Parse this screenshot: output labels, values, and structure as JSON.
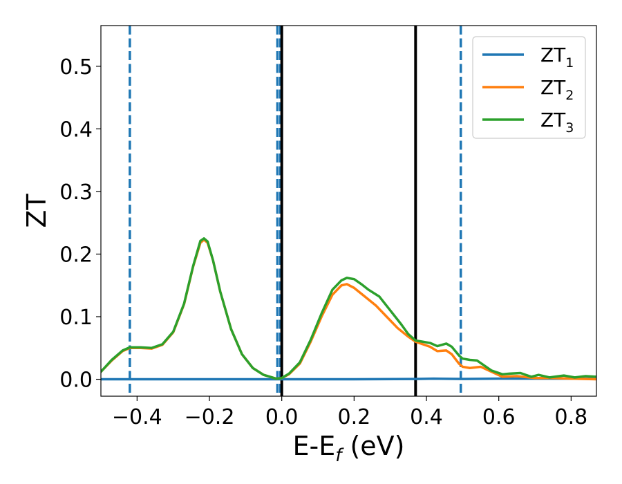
{
  "chart_data": {
    "type": "line",
    "xlabel": "E-E_f (eV)",
    "xlabel_parts": {
      "main": "E-E",
      "sub": "f",
      "unit": " (eV)"
    },
    "ylabel": "ZT",
    "xlim": [
      -0.5,
      0.87
    ],
    "ylim": [
      -0.027,
      0.565
    ],
    "xticks": [
      -0.4,
      -0.2,
      0.0,
      0.2,
      0.4,
      0.6,
      0.8
    ],
    "xtick_labels": [
      "−0.4",
      "−0.2",
      "0.0",
      "0.2",
      "0.4",
      "0.6",
      "0.8"
    ],
    "yticks": [
      0.0,
      0.1,
      0.2,
      0.3,
      0.4,
      0.5
    ],
    "ytick_labels": [
      "0.0",
      "0.1",
      "0.2",
      "0.3",
      "0.4",
      "0.5"
    ],
    "grid": false,
    "legend_position": "top-right",
    "vertical_lines": [
      {
        "x": -0.42,
        "style": "dashed",
        "color": "#1f77b4"
      },
      {
        "x": -0.012,
        "style": "dashed",
        "color": "#1f77b4"
      },
      {
        "x": -0.004,
        "style": "dashed",
        "color": "#1f77b4"
      },
      {
        "x": 0.0,
        "style": "solid",
        "color": "#000000"
      },
      {
        "x": 0.37,
        "style": "solid",
        "color": "#000000"
      },
      {
        "x": 0.495,
        "style": "dashed",
        "color": "#1f77b4"
      }
    ],
    "series": [
      {
        "name": "ZT_1",
        "label_main": "ZT",
        "label_sub": "1",
        "color": "#1f77b4",
        "points": [
          [
            -0.5,
            0.0
          ],
          [
            -0.2,
            0.0
          ],
          [
            0.0,
            0.0
          ],
          [
            0.2,
            0.0
          ],
          [
            0.37,
            0.0005
          ],
          [
            0.42,
            0.001
          ],
          [
            0.5,
            0.0005
          ],
          [
            0.6,
            0.001
          ],
          [
            0.7,
            0.001
          ],
          [
            0.87,
            0.001
          ]
        ]
      },
      {
        "name": "ZT_2",
        "label_main": "ZT",
        "label_sub": "2",
        "color": "#ff7f0e",
        "points": [
          [
            -0.5,
            0.012
          ],
          [
            -0.47,
            0.03
          ],
          [
            -0.44,
            0.045
          ],
          [
            -0.42,
            0.05
          ],
          [
            -0.39,
            0.05
          ],
          [
            -0.36,
            0.049
          ],
          [
            -0.33,
            0.055
          ],
          [
            -0.3,
            0.075
          ],
          [
            -0.27,
            0.12
          ],
          [
            -0.245,
            0.18
          ],
          [
            -0.225,
            0.218
          ],
          [
            -0.215,
            0.223
          ],
          [
            -0.205,
            0.218
          ],
          [
            -0.19,
            0.19
          ],
          [
            -0.17,
            0.14
          ],
          [
            -0.14,
            0.08
          ],
          [
            -0.11,
            0.04
          ],
          [
            -0.08,
            0.018
          ],
          [
            -0.05,
            0.007
          ],
          [
            -0.015,
            0.001
          ],
          [
            0.0,
            0.002
          ],
          [
            0.02,
            0.008
          ],
          [
            0.05,
            0.025
          ],
          [
            0.08,
            0.06
          ],
          [
            0.11,
            0.1
          ],
          [
            0.14,
            0.135
          ],
          [
            0.165,
            0.15
          ],
          [
            0.18,
            0.152
          ],
          [
            0.2,
            0.146
          ],
          [
            0.23,
            0.132
          ],
          [
            0.26,
            0.118
          ],
          [
            0.29,
            0.1
          ],
          [
            0.32,
            0.082
          ],
          [
            0.35,
            0.068
          ],
          [
            0.37,
            0.06
          ],
          [
            0.39,
            0.056
          ],
          [
            0.41,
            0.052
          ],
          [
            0.43,
            0.045
          ],
          [
            0.455,
            0.046
          ],
          [
            0.47,
            0.04
          ],
          [
            0.49,
            0.025
          ],
          [
            0.5,
            0.02
          ],
          [
            0.52,
            0.018
          ],
          [
            0.55,
            0.02
          ],
          [
            0.58,
            0.012
          ],
          [
            0.61,
            0.004
          ],
          [
            0.65,
            0.005
          ],
          [
            0.7,
            0.002
          ],
          [
            0.75,
            0.002
          ],
          [
            0.8,
            0.001
          ],
          [
            0.87,
            0.0
          ]
        ]
      },
      {
        "name": "ZT_3",
        "label_main": "ZT",
        "label_sub": "3",
        "color": "#2ca02c",
        "points": [
          [
            -0.5,
            0.012
          ],
          [
            -0.47,
            0.031
          ],
          [
            -0.44,
            0.046
          ],
          [
            -0.42,
            0.051
          ],
          [
            -0.39,
            0.051
          ],
          [
            -0.36,
            0.05
          ],
          [
            -0.33,
            0.056
          ],
          [
            -0.3,
            0.076
          ],
          [
            -0.27,
            0.121
          ],
          [
            -0.245,
            0.181
          ],
          [
            -0.225,
            0.221
          ],
          [
            -0.215,
            0.225
          ],
          [
            -0.205,
            0.22
          ],
          [
            -0.19,
            0.19
          ],
          [
            -0.17,
            0.14
          ],
          [
            -0.14,
            0.08
          ],
          [
            -0.11,
            0.04
          ],
          [
            -0.08,
            0.018
          ],
          [
            -0.05,
            0.007
          ],
          [
            -0.015,
            0.001
          ],
          [
            0.0,
            0.002
          ],
          [
            0.02,
            0.009
          ],
          [
            0.05,
            0.027
          ],
          [
            0.08,
            0.063
          ],
          [
            0.11,
            0.105
          ],
          [
            0.14,
            0.143
          ],
          [
            0.165,
            0.158
          ],
          [
            0.18,
            0.162
          ],
          [
            0.2,
            0.16
          ],
          [
            0.22,
            0.152
          ],
          [
            0.24,
            0.143
          ],
          [
            0.27,
            0.132
          ],
          [
            0.3,
            0.11
          ],
          [
            0.33,
            0.088
          ],
          [
            0.35,
            0.072
          ],
          [
            0.37,
            0.062
          ],
          [
            0.39,
            0.06
          ],
          [
            0.41,
            0.058
          ],
          [
            0.43,
            0.053
          ],
          [
            0.455,
            0.057
          ],
          [
            0.47,
            0.052
          ],
          [
            0.49,
            0.038
          ],
          [
            0.5,
            0.033
          ],
          [
            0.52,
            0.031
          ],
          [
            0.54,
            0.03
          ],
          [
            0.56,
            0.022
          ],
          [
            0.58,
            0.014
          ],
          [
            0.61,
            0.008
          ],
          [
            0.63,
            0.009
          ],
          [
            0.66,
            0.01
          ],
          [
            0.69,
            0.004
          ],
          [
            0.71,
            0.007
          ],
          [
            0.74,
            0.003
          ],
          [
            0.78,
            0.006
          ],
          [
            0.81,
            0.003
          ],
          [
            0.84,
            0.005
          ],
          [
            0.87,
            0.004
          ]
        ]
      }
    ]
  }
}
